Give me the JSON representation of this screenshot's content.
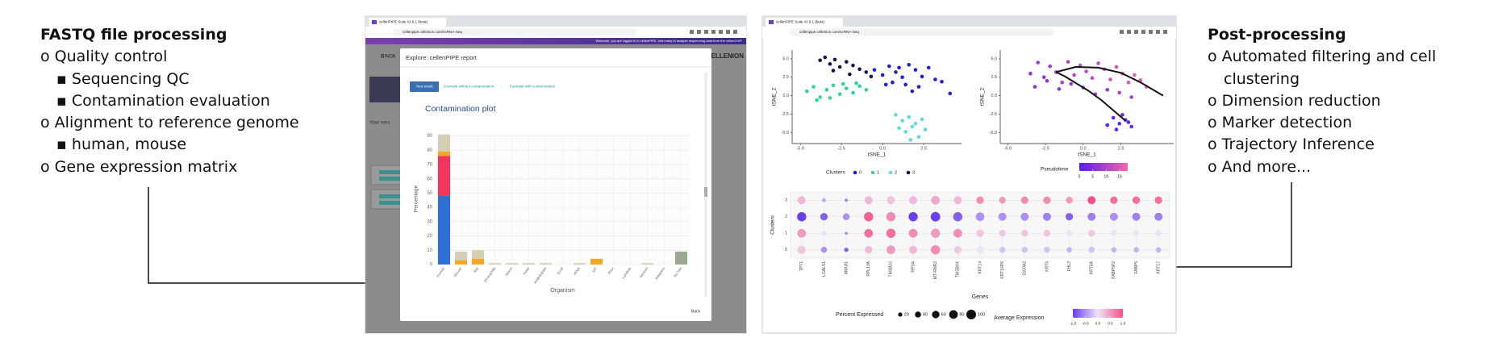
{
  "left_list": {
    "title": "FASTQ file processing",
    "items": [
      {
        "text": "o Quality control",
        "subitems": [
          "▪ Sequencing QC",
          "▪ Contamination evaluation"
        ]
      },
      {
        "text": "o Alignment to reference genome",
        "subitems": [
          "▪ human, mouse"
        ]
      },
      {
        "text": "o Gene expression matrix",
        "subitems": []
      }
    ]
  },
  "right_list": {
    "title": "Post-processing",
    "items": [
      "o Automated filtering and cell clustering",
      "o Dimension reduction",
      "o Marker detection",
      "o Trajectory Inference",
      "o And more..."
    ]
  },
  "left_screen": {
    "tab_title": "cellenPIPE Suite v3.6.1 (beta)",
    "url": "cellenpipe.cellenion.com/scRNA-Seq",
    "banner": "Welcome, you are logged in to cellenPIPE, and ready to analyze sequencing data from the cellenCHIP",
    "back": "BACK",
    "logo": "CELLENION",
    "runs": "Your runs",
    "modal": {
      "title": "Explore: cellenPIPE report",
      "tabs": [
        "Your result",
        "Example without contamination",
        "Example with contamination"
      ],
      "back": "Back"
    }
  },
  "right_screen": {
    "tab_title": "cellenPIPE Suite v3.6.1 (beta)",
    "url": "cellenpipe.cellenion.com/scRNA-Seq"
  },
  "chart_data": [
    {
      "type": "bar",
      "title": "Contamination plot",
      "xlabel": "Organism",
      "ylabel": "Percentage",
      "categories": [
        "Human",
        "Mouse",
        "Rat",
        "Drosophila",
        "Worm",
        "Yeast",
        "Arabidopsis",
        "Ecoli",
        "rRNA",
        "MT",
        "PhiX",
        "Lambda",
        "Vectors",
        "Adapters",
        "No hits"
      ],
      "series": [
        {
          "color": "#2f6fd8",
          "values": [
            48,
            0,
            0,
            0,
            0,
            0,
            0,
            0,
            0,
            0,
            0,
            0,
            0,
            0,
            0
          ]
        },
        {
          "color": "#f2365e",
          "values": [
            28,
            0,
            0,
            0,
            0,
            0,
            0,
            0,
            0,
            0,
            0,
            0,
            0,
            0,
            0
          ]
        },
        {
          "color": "#f5a623",
          "values": [
            3,
            3,
            4,
            0,
            0,
            0,
            0,
            0,
            0,
            4,
            0,
            0,
            0,
            0,
            0
          ]
        },
        {
          "color": "#d4ceb4",
          "values": [
            12,
            6,
            6,
            1,
            1,
            1,
            1,
            0,
            1,
            0,
            0,
            0,
            1,
            0,
            0
          ]
        },
        {
          "color": "#9aa892",
          "values": [
            0,
            0,
            0,
            0,
            0,
            0,
            0,
            0,
            0,
            0,
            0,
            0,
            0,
            0,
            9
          ]
        }
      ],
      "ylim": [
        0,
        92
      ],
      "yticks": [
        0,
        10,
        20,
        30,
        40,
        50,
        60,
        70,
        80,
        90
      ],
      "grid": true
    },
    {
      "type": "scatter",
      "xlabel": "tSNE_1",
      "ylabel": "tSNE_2",
      "legend_title": "Clusters",
      "xlim": [
        -5.5,
        4.8
      ],
      "xticks": [
        {
          "value": -5,
          "label": "-5.0"
        },
        -2.5,
        {
          "value": 0,
          "label": "0.0"
        },
        2.5
      ],
      "ylim": [
        -6.5,
        6.2
      ],
      "yticks": [
        {
          "value": -5,
          "label": "-5.0"
        },
        -2.5,
        {
          "value": 0,
          "label": "0.0"
        },
        2.5,
        {
          "value": 5,
          "label": "5.0"
        }
      ],
      "series": [
        {
          "name": "0",
          "color": "#1f1fd0",
          "x": [
            -0.5,
            0,
            0.4,
            0.8,
            1.2,
            1.6,
            2,
            2.4,
            2.8,
            3.2,
            0.6,
            1.4,
            2.2,
            3.6,
            4.1,
            0.2,
            1.0,
            1.8
          ],
          "values": [
            3.5,
            2.8,
            4,
            3.2,
            2.5,
            4.2,
            3.5,
            2.6,
            3.8,
            2.2,
            1.8,
            1.5,
            1.2,
            1.9,
            0.3,
            1.5,
            3.8,
            0.6
          ]
        },
        {
          "name": "1",
          "color": "#2fd49a",
          "x": [
            -4.6,
            -4.2,
            -3.8,
            -3.4,
            -3.0,
            -2.6,
            -2.2,
            -1.8,
            -1.4,
            -1.0,
            -4,
            -3.2,
            -2.4,
            -1.6
          ],
          "values": [
            0.6,
            1.2,
            -0.2,
            0.8,
            1.4,
            0.2,
            1.0,
            0.4,
            1.3,
            0.8,
            -0.6,
            -0.3,
            1.6,
            1.7
          ]
        },
        {
          "name": "2",
          "color": "#5fd8ea",
          "x": [
            0.8,
            1.2,
            1.6,
            2.0,
            2.4,
            1.0,
            1.4,
            1.8,
            2.2,
            2.6,
            1.7
          ],
          "values": [
            -2.6,
            -3.4,
            -2.9,
            -3.8,
            -3.2,
            -4.4,
            -4.9,
            -4.2,
            -5.6,
            -4.6,
            -6
          ]
        },
        {
          "name": "3",
          "color": "#141450",
          "x": [
            -3.8,
            -3.5,
            -3.2,
            -2.9,
            -2.6,
            -2.2,
            -1.8,
            -1.4,
            -1.0,
            -0.7,
            -3.0,
            -2.0
          ],
          "values": [
            4.8,
            5.2,
            4.3,
            4.9,
            3.9,
            4.6,
            4.1,
            3.6,
            3.2,
            2.6,
            3.4,
            2.9
          ]
        }
      ]
    },
    {
      "type": "scatter",
      "xlabel": "tSNE_1",
      "ylabel": "tSNE_2",
      "xlim": [
        -5.5,
        6
      ],
      "xticks": [
        {
          "value": -5,
          "label": "-5.0"
        },
        -2.5,
        {
          "value": 0,
          "label": "0.0"
        },
        2.5
      ],
      "ylim": [
        -6.5,
        6.2
      ],
      "yticks": [
        {
          "value": -5,
          "label": "-5.0"
        },
        -2.5,
        {
          "value": 0,
          "label": "0.0"
        },
        2.5,
        {
          "value": 5,
          "label": "5.0"
        }
      ],
      "x": [
        -3.5,
        -3,
        -2.6,
        -2.2,
        -1.8,
        -1.4,
        -1,
        -0.6,
        -0.2,
        0.2,
        0.6,
        1,
        1.4,
        1.8,
        2.2,
        2.6,
        3,
        3.4,
        3.8,
        4.2,
        -3.2,
        -2.4,
        -1.6,
        -0.8,
        0,
        0.8,
        1.6,
        2.4,
        3.2,
        2.0,
        2.4,
        2.8,
        3.2,
        1.6,
        2.2,
        2.6,
        3.0
      ],
      "values": [
        3,
        4.5,
        2.5,
        4,
        3.2,
        1.8,
        4.6,
        2.8,
        4.1,
        3.3,
        2.4,
        4.4,
        3.6,
        2.2,
        3.9,
        3.0,
        1.8,
        2.8,
        2.1,
        1.2,
        1.2,
        2.0,
        0.9,
        1.6,
        1.1,
        0.2,
        0.8,
        0.4,
        -0.2,
        -3,
        -3.8,
        -3.3,
        -4.2,
        -4,
        -4.6,
        -2.6,
        -3.6
      ],
      "pseudotime": [
        6,
        7,
        7,
        8,
        8,
        9,
        10,
        10,
        11,
        11,
        12,
        12,
        13,
        14,
        14,
        15,
        15,
        16,
        16,
        17,
        5,
        6,
        6,
        7,
        7,
        8,
        8,
        9,
        9,
        1,
        2,
        1,
        3,
        0,
        1,
        2,
        1
      ],
      "colorbar_title": "Pseudotime",
      "colorbar_lim": [
        0,
        18
      ],
      "colorbar_ticks": [
        0,
        5,
        10,
        15
      ],
      "colors": [
        "#5a1cf0",
        "#f564a8"
      ],
      "trajectory": [
        {
          "x": [
            -1.8,
            -1.2,
            -0.4,
            0.4,
            1.2,
            2.0,
            2.8
          ],
          "y": [
            3.2,
            2.6,
            1.6,
            0.6,
            -0.6,
            -2.0,
            -3.4
          ]
        },
        {
          "x": [
            -1.8,
            -0.5,
            1,
            2.5,
            3.8,
            5.3
          ],
          "y": [
            3.2,
            3.9,
            3.8,
            3.1,
            1.8,
            0
          ]
        }
      ]
    },
    {
      "type": "dot",
      "xlabel": "Genes",
      "ylabel": "Clusters",
      "categories": [
        "TPT1",
        "LGALS1",
        "ANXA1",
        "RPL13A",
        "TMSB10",
        "RPSA",
        "MT-RNR2",
        "TMSB4X",
        "KRT14",
        "KRT16P6",
        "S100A2",
        "KRT5",
        "FHL2",
        "KRT6A",
        "FABP5P2",
        "FABP5",
        "KRT17"
      ],
      "ylim": [
        -0.5,
        3.5
      ],
      "yticks": [
        0,
        1,
        2,
        3
      ],
      "pct": [
        [
          70,
          40,
          20,
          60,
          80,
          70,
          90,
          60,
          50,
          40,
          40,
          40,
          30,
          40,
          30,
          30,
          30
        ],
        [
          80,
          30,
          10,
          80,
          90,
          80,
          90,
          80,
          60,
          50,
          50,
          50,
          40,
          50,
          40,
          40,
          40
        ],
        [
          90,
          60,
          50,
          90,
          90,
          90,
          95,
          90,
          80,
          70,
          70,
          70,
          60,
          70,
          70,
          70,
          70
        ],
        [
          70,
          20,
          10,
          70,
          70,
          70,
          80,
          70,
          60,
          50,
          60,
          60,
          50,
          70,
          60,
          60,
          60
        ]
      ],
      "avg": [
        [
          0.2,
          -0.5,
          -0.8,
          0.3,
          0.5,
          0.3,
          0.6,
          0.2,
          0,
          -0.2,
          -0.2,
          -0.2,
          -0.3,
          -0.2,
          -0.3,
          -0.3,
          -0.3
        ],
        [
          0.5,
          0,
          -0.5,
          0.8,
          0.8,
          0.6,
          0.5,
          0.6,
          0.2,
          0.2,
          0.2,
          0.2,
          0,
          0.2,
          0,
          0,
          0
        ],
        [
          -1,
          -0.8,
          -0.5,
          0.9,
          0.6,
          -1,
          -1,
          -0.8,
          -0.5,
          -0.5,
          -0.5,
          -0.6,
          -0.8,
          -0.6,
          -0.5,
          -0.6,
          -0.6
        ],
        [
          0.3,
          -0.3,
          -0.6,
          0.3,
          0.2,
          0.3,
          0.4,
          0.3,
          0.6,
          0.5,
          0.6,
          0.6,
          0.5,
          1,
          0.8,
          0.8,
          0.8
        ]
      ],
      "size_legend_title": "Percent Expressed",
      "size_legend": [
        20,
        40,
        60,
        80,
        100
      ],
      "color_legend_title": "Average Expression",
      "color_lim": [
        -1,
        1
      ],
      "color_ticks": [
        {
          "value": -1,
          "label": "-1.0"
        },
        -0.5,
        {
          "value": 0,
          "label": "0.0"
        },
        0.5,
        {
          "value": 1,
          "label": "1.0"
        }
      ],
      "colors": [
        "#6b3cf0",
        "#ece4f6",
        "#f5508c"
      ]
    }
  ]
}
